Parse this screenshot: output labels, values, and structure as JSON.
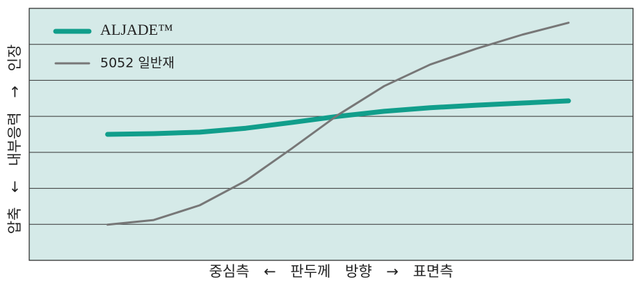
{
  "chart_data": {
    "type": "line",
    "y_label": "압축 ← 내부응력 → 인장",
    "x_label": "중심측 ← 판두께 방향 → 표면측",
    "x": [
      0,
      1,
      2,
      3,
      4,
      5,
      6,
      7,
      8,
      9,
      10
    ],
    "xlim": [
      -1.7,
      11.4
    ],
    "ylim": [
      0,
      7
    ],
    "yticks": [
      1,
      2,
      3,
      4,
      5,
      6
    ],
    "grid": true,
    "legend": "top-left",
    "series": [
      {
        "name": "ALJADE™",
        "color": "#119e8b",
        "width": 7,
        "values": [
          3.5,
          3.52,
          3.56,
          3.67,
          3.83,
          4.0,
          4.14,
          4.24,
          4.31,
          4.37,
          4.43
        ]
      },
      {
        "name": "5052 일반재",
        "color": "#777777",
        "width": 3,
        "values": [
          0.99,
          1.12,
          1.53,
          2.21,
          3.11,
          4.04,
          4.84,
          5.44,
          5.88,
          6.27,
          6.6
        ]
      }
    ]
  }
}
